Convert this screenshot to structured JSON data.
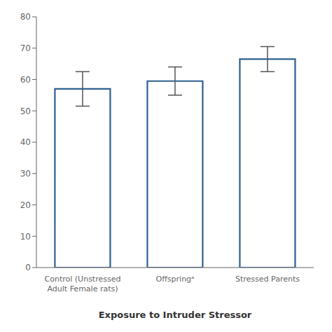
{
  "chart_data": {
    "type": "bar",
    "categories": [
      "Control (Unstressed\nAdult Female rats)",
      "Offspringᵃ",
      "Stressed Parents"
    ],
    "values": [
      57.0,
      59.5,
      66.5
    ],
    "errors": [
      5.5,
      4.5,
      4.0
    ],
    "color": "#2E6090",
    "ylim": [
      0,
      80
    ],
    "yticks": [
      0,
      10,
      20,
      30,
      40,
      50,
      60,
      70,
      80
    ],
    "xlabel": "Exposure to Intruder Stressor",
    "grid": false
  }
}
